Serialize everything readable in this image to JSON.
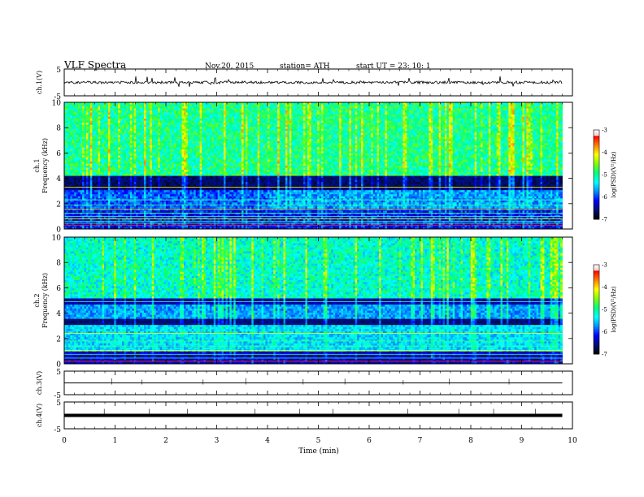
{
  "header": {
    "title": "VLF  Spectra",
    "date": "Nov.20, 2015",
    "station": "station= ATH",
    "start": "start  UT  =   23: 10: 1"
  },
  "colors": {
    "colormap": [
      "#000000",
      "#001070",
      "#0000ff",
      "#0090ff",
      "#00ffff",
      "#00ff80",
      "#80ff00",
      "#ffff00",
      "#ff8000",
      "#ff0000",
      "#ffffff"
    ]
  },
  "chart_data": [
    {
      "type": "line",
      "panel": "ch1-waveform",
      "ylabel": "ch.1(V)",
      "ylim": [
        -5,
        5
      ],
      "yticks": [
        "5",
        "-5"
      ],
      "xlim": [
        0,
        10
      ],
      "trace_level": 0,
      "description_values": "noisy waveform around 0 V with spikes"
    },
    {
      "type": "heatmap",
      "panel": "ch1-spectrogram",
      "ylabel": "ch.1\nFrequency  (kHz)",
      "ylabel_lines": [
        "ch.1",
        "Frequency  (kHz)"
      ],
      "ylim": [
        0,
        10
      ],
      "yticks": [
        "0",
        "2",
        "4",
        "6",
        "8",
        "10"
      ],
      "xlim": [
        0,
        9.8
      ],
      "colorbar": {
        "label": "log(PSD)(V²/Hz)",
        "range": [
          -7,
          -3
        ],
        "ticks": [
          "-3",
          "-4",
          "-5",
          "-6",
          "-7"
        ]
      }
    },
    {
      "type": "heatmap",
      "panel": "ch2-spectrogram",
      "ylabel": "ch.2\nFrequency  (kHz)",
      "ylabel_lines": [
        "ch.2",
        "Frequency  (kHz)"
      ],
      "ylim": [
        0,
        10
      ],
      "yticks": [
        "0",
        "2",
        "4",
        "6",
        "8",
        "10"
      ],
      "xlim": [
        0,
        9.8
      ],
      "colorbar": {
        "label": "log(PSD)(V²/Hz)",
        "range": [
          -7,
          -3
        ],
        "ticks": [
          "-3",
          "-4",
          "-5",
          "-6",
          "-7"
        ]
      }
    },
    {
      "type": "line",
      "panel": "ch3-waveform",
      "ylabel": "ch.3(V)",
      "ylim": [
        -5,
        5
      ],
      "yticks": [
        "5",
        "-5"
      ],
      "xlim": [
        0,
        10
      ],
      "trace_level": 0
    },
    {
      "type": "line",
      "panel": "ch4-waveform",
      "ylabel": "ch.4(V)",
      "ylim": [
        -5,
        5
      ],
      "yticks": [
        "5",
        "-5"
      ],
      "xlim": [
        0,
        10
      ],
      "trace_level": 0
    }
  ],
  "xaxis": {
    "label": "Time  (min)",
    "range": [
      0,
      10
    ],
    "ticks": [
      "0",
      "1",
      "2",
      "3",
      "4",
      "5",
      "6",
      "7",
      "8",
      "9",
      "10"
    ]
  }
}
